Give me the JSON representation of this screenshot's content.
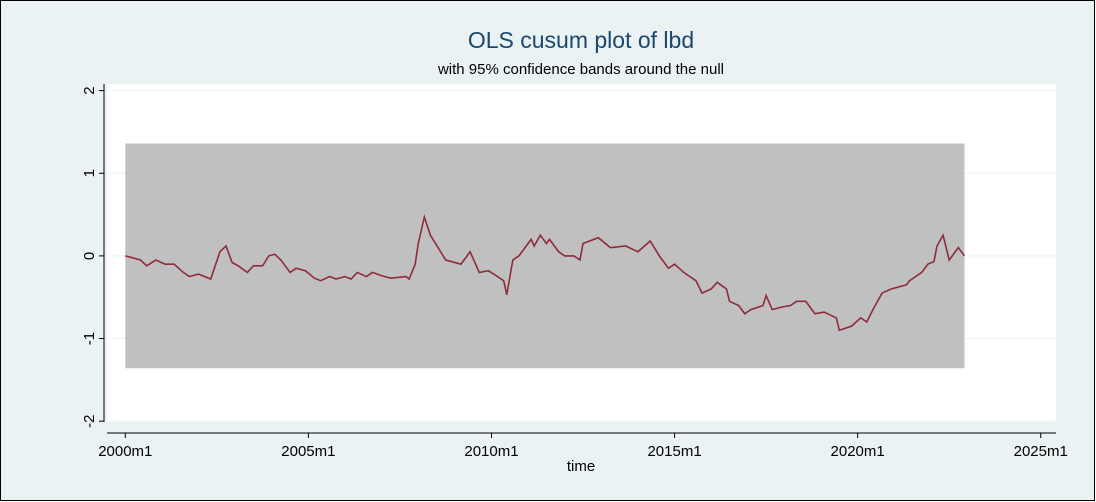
{
  "chart_data": {
    "type": "line",
    "title": "OLS cusum plot of lbd",
    "subtitle": "with 95% confidence bands around the null",
    "xlabel": "time",
    "xlim": [
      474,
      785
    ],
    "xticks": [
      {
        "value": 480,
        "label": "2000m1"
      },
      {
        "value": 540,
        "label": "2005m1"
      },
      {
        "value": 600,
        "label": "2010m1"
      },
      {
        "value": 660,
        "label": "2015m1"
      },
      {
        "value": 720,
        "label": "2020m1"
      },
      {
        "value": 780,
        "label": "2025m1"
      }
    ],
    "ylim": [
      -2.01,
      2.08
    ],
    "yticks": [
      -2,
      -1,
      0,
      1,
      2
    ],
    "grid": true,
    "band": {
      "color": "#c0c0c0",
      "x": [
        480,
        755
      ],
      "upper": [
        1.36,
        1.36
      ],
      "lower": [
        -1.36,
        -1.36
      ]
    },
    "series": [
      {
        "color": "#8e2c3a",
        "x": [
          480,
          485,
          487,
          490,
          493,
          496,
          499,
          501,
          504,
          508,
          511,
          513,
          515,
          517,
          520,
          522,
          525,
          527,
          529,
          531,
          534,
          536,
          539,
          542,
          544,
          547,
          549,
          552,
          554,
          556,
          559,
          561,
          564,
          567,
          572,
          573,
          575,
          576,
          578,
          580,
          585,
          590,
          593,
          596,
          599,
          602,
          604,
          605,
          607,
          609,
          613,
          614,
          616,
          618,
          619,
          622,
          624,
          627,
          629,
          630,
          635,
          639,
          644,
          648,
          652,
          655,
          658,
          660,
          663,
          667,
          669,
          672,
          674,
          677,
          678,
          681,
          683,
          685,
          689,
          690,
          692,
          695,
          698,
          700,
          703,
          706,
          709,
          713,
          714,
          718,
          721,
          723,
          725,
          728,
          731,
          736,
          737,
          741,
          743,
          745,
          746,
          748,
          750,
          751,
          753,
          755
        ],
        "values": [
          0,
          -0.05,
          -0.12,
          -0.05,
          -0.1,
          -0.1,
          -0.2,
          -0.25,
          -0.22,
          -0.28,
          0.05,
          0.12,
          -0.08,
          -0.12,
          -0.2,
          -0.12,
          -0.12,
          0,
          0.02,
          -0.05,
          -0.2,
          -0.15,
          -0.18,
          -0.27,
          -0.3,
          -0.25,
          -0.28,
          -0.25,
          -0.28,
          -0.2,
          -0.25,
          -0.2,
          -0.24,
          -0.27,
          -0.25,
          -0.28,
          -0.1,
          0.15,
          0.47,
          0.25,
          -0.05,
          -0.1,
          0.05,
          -0.2,
          -0.18,
          -0.25,
          -0.3,
          -0.47,
          -0.05,
          0,
          0.2,
          0.12,
          0.25,
          0.15,
          0.2,
          0.05,
          0,
          0,
          -0.05,
          0.15,
          0.22,
          0.1,
          0.12,
          0.05,
          0.18,
          0,
          -0.15,
          -0.1,
          -0.2,
          -0.3,
          -0.45,
          -0.4,
          -0.32,
          -0.4,
          -0.55,
          -0.6,
          -0.7,
          -0.65,
          -0.6,
          -0.48,
          -0.65,
          -0.62,
          -0.6,
          -0.55,
          -0.55,
          -0.7,
          -0.68,
          -0.75,
          -0.9,
          -0.85,
          -0.75,
          -0.8,
          -0.65,
          -0.45,
          -0.4,
          -0.35,
          -0.3,
          -0.2,
          -0.1,
          -0.07,
          0.12,
          0.25,
          -0.05,
          0,
          0.1,
          0
        ]
      }
    ]
  }
}
